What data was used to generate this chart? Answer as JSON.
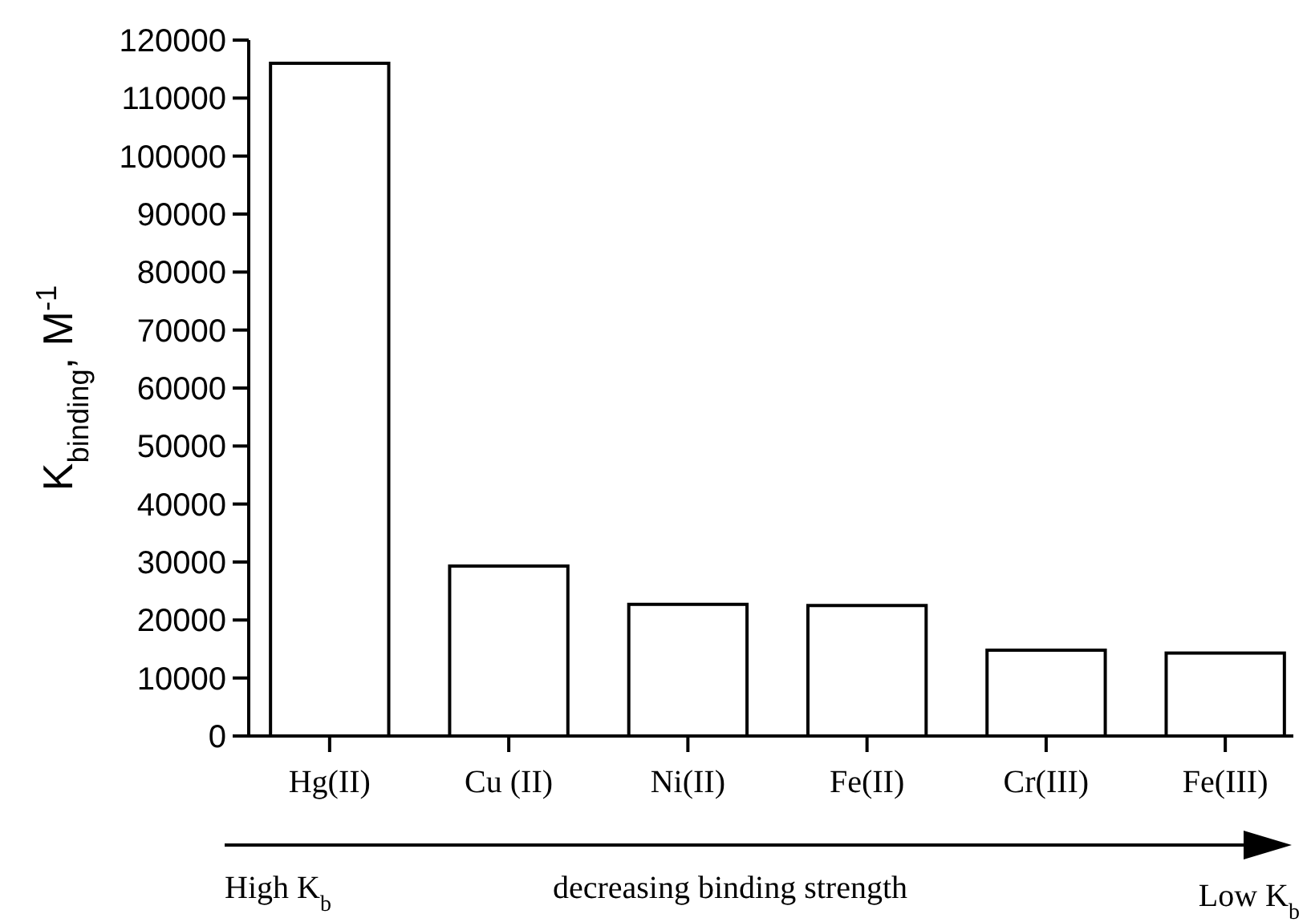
{
  "chart_data": {
    "type": "bar",
    "ylabel": "K$_{binding}$, M$^{-1}$",
    "categories": [
      "Hg(II)",
      "Cu (II)",
      "Ni(II)",
      "Fe(II)",
      "Cr(III)",
      "Fe(III)"
    ],
    "values": [
      116000,
      29300,
      22700,
      22500,
      14800,
      14300
    ],
    "color": "#ffffff",
    "ylim": [
      0,
      120000
    ],
    "yticks": [
      0,
      10000,
      20000,
      30000,
      40000,
      50000,
      60000,
      70000,
      80000,
      90000,
      100000,
      110000,
      120000
    ],
    "grid": false,
    "annotations": [
      "High K$_{b}$",
      "decreasing binding strength",
      "Low K$_{b}$"
    ]
  }
}
